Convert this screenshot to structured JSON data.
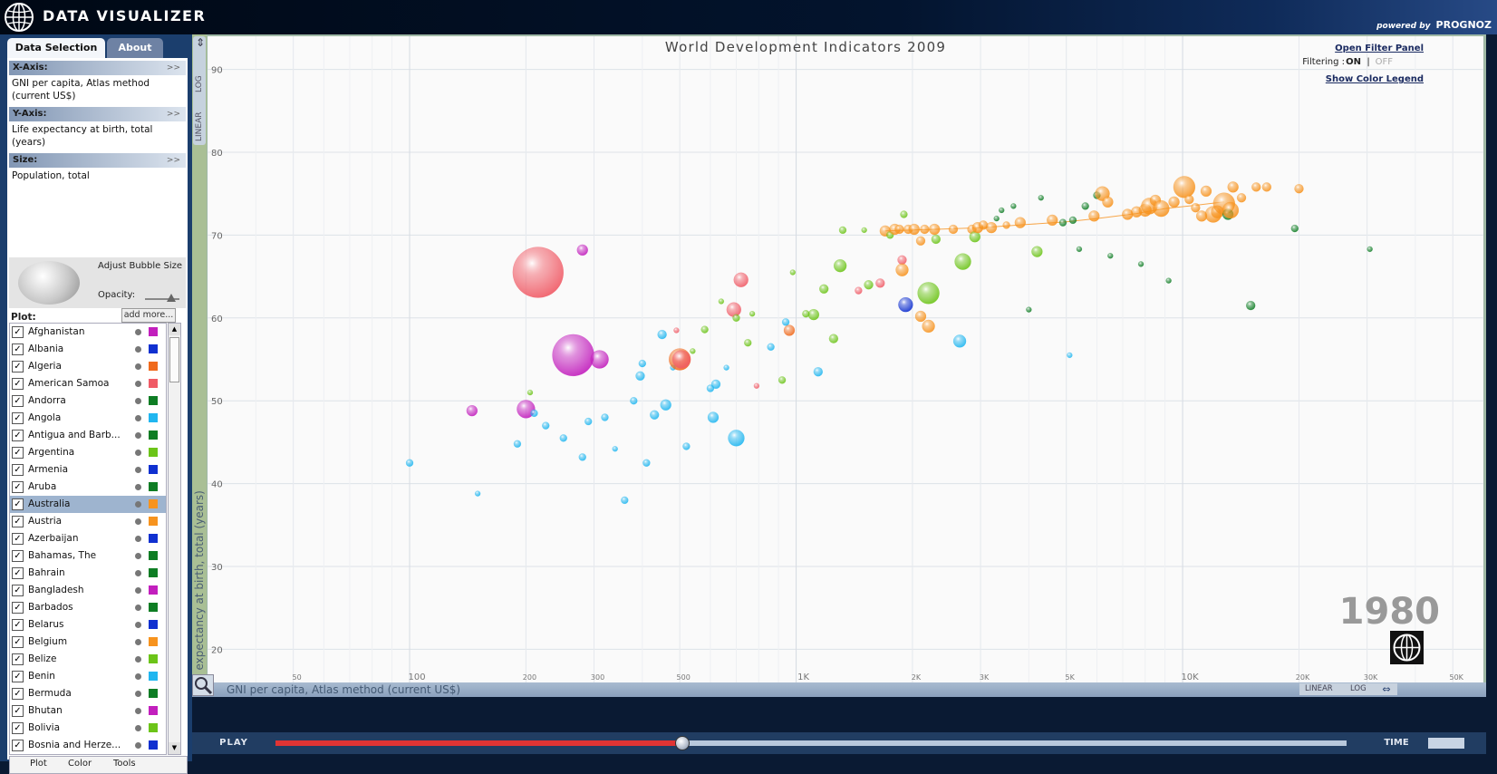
{
  "app": {
    "title": "DATA VISUALIZER",
    "powered_by": "powered by",
    "brand": "PROGNOZ"
  },
  "tabs": [
    "Data Selection",
    "About"
  ],
  "axes": {
    "x": {
      "label": "X-Axis:",
      "value": "GNI per capita, Atlas method (current US$)"
    },
    "y": {
      "label": "Y-Axis:",
      "value": "Life expectancy at birth, total (years)"
    },
    "size": {
      "label": "Size:",
      "value": "Population, total"
    },
    "expand": ">>"
  },
  "bubble_controls": {
    "adjust": "Adjust Bubble Size",
    "opacity": "Opacity:",
    "opacity_level": 0.7
  },
  "plot": {
    "label": "Plot:",
    "add_more": "add more..."
  },
  "countries": [
    {
      "name": "Afghanistan",
      "color": "#c21fbd",
      "selected": false
    },
    {
      "name": "Albania",
      "color": "#1030d0",
      "selected": false
    },
    {
      "name": "Algeria",
      "color": "#f06a1c",
      "selected": false
    },
    {
      "name": "American Samoa",
      "color": "#f05b66",
      "selected": false
    },
    {
      "name": "Andorra",
      "color": "#0e7d24",
      "selected": false
    },
    {
      "name": "Angola",
      "color": "#20b6f0",
      "selected": false
    },
    {
      "name": "Antigua and Barb...",
      "color": "#0e7d24",
      "selected": false
    },
    {
      "name": "Argentina",
      "color": "#6cc418",
      "selected": false
    },
    {
      "name": "Armenia",
      "color": "#1030d0",
      "selected": false
    },
    {
      "name": "Aruba",
      "color": "#0e7d24",
      "selected": false
    },
    {
      "name": "Australia",
      "color": "#f7931e",
      "selected": true
    },
    {
      "name": "Austria",
      "color": "#f7931e",
      "selected": false
    },
    {
      "name": "Azerbaijan",
      "color": "#1030d0",
      "selected": false
    },
    {
      "name": "Bahamas, The",
      "color": "#0e7d24",
      "selected": false
    },
    {
      "name": "Bahrain",
      "color": "#0e7d24",
      "selected": false
    },
    {
      "name": "Bangladesh",
      "color": "#c21fbd",
      "selected": false
    },
    {
      "name": "Barbados",
      "color": "#0e7d24",
      "selected": false
    },
    {
      "name": "Belarus",
      "color": "#1030d0",
      "selected": false
    },
    {
      "name": "Belgium",
      "color": "#f7931e",
      "selected": false
    },
    {
      "name": "Belize",
      "color": "#6cc418",
      "selected": false
    },
    {
      "name": "Benin",
      "color": "#20b6f0",
      "selected": false
    },
    {
      "name": "Bermuda",
      "color": "#0e7d24",
      "selected": false
    },
    {
      "name": "Bhutan",
      "color": "#c21fbd",
      "selected": false
    },
    {
      "name": "Bolivia",
      "color": "#6cc418",
      "selected": false
    },
    {
      "name": "Bosnia and Herze...",
      "color": "#1030d0",
      "selected": false
    }
  ],
  "bottom_tabs": [
    "Plot",
    "Color",
    "Tools"
  ],
  "scale_toggle": {
    "log": "LOG",
    "linear": "LINEAR"
  },
  "filter": {
    "open": "Open Filter Panel",
    "label": "Filtering :",
    "on": "ON",
    "sep": "|",
    "off": "OFF",
    "legend": "Show Color Legend"
  },
  "year": "1980",
  "playbar": {
    "play": "PLAY",
    "time": "TIME",
    "progress": 0.38
  },
  "chart_data": {
    "type": "scatter",
    "title": "World Development Indicators 2009",
    "xlabel": "GNI per capita, Atlas method (current US$)",
    "ylabel": "Life expectancy at birth, total (years)",
    "x_scale": "log",
    "xlim": [
      30,
      60000
    ],
    "ylim": [
      16,
      94
    ],
    "x_ticks": [
      {
        "v": 50,
        "label": "50"
      },
      {
        "v": 100,
        "label": "100",
        "major": true
      },
      {
        "v": 200,
        "label": "200"
      },
      {
        "v": 300,
        "label": "300"
      },
      {
        "v": 500,
        "label": "500"
      },
      {
        "v": 1000,
        "label": "1K",
        "major": true
      },
      {
        "v": 2000,
        "label": "2K"
      },
      {
        "v": 3000,
        "label": "3K"
      },
      {
        "v": 5000,
        "label": "5K"
      },
      {
        "v": 10000,
        "label": "10K",
        "major": true
      },
      {
        "v": 20000,
        "label": "20K"
      },
      {
        "v": 30000,
        "label": "30K"
      },
      {
        "v": 50000,
        "label": "50K"
      }
    ],
    "y_ticks": [
      20,
      30,
      40,
      50,
      60,
      70,
      80,
      90
    ],
    "grid": true,
    "points": [
      {
        "x": 215,
        "y": 65.5,
        "r": 28,
        "c": "#f05b66"
      },
      {
        "x": 265,
        "y": 55.5,
        "r": 23,
        "c": "#c21fbd"
      },
      {
        "x": 280,
        "y": 68.2,
        "r": 6,
        "c": "#c21fbd"
      },
      {
        "x": 310,
        "y": 55,
        "r": 10,
        "c": "#c21fbd"
      },
      {
        "x": 200,
        "y": 49,
        "r": 10,
        "c": "#c21fbd"
      },
      {
        "x": 145,
        "y": 48.8,
        "r": 6,
        "c": "#c21fbd"
      },
      {
        "x": 100,
        "y": 42.5,
        "r": 4,
        "c": "#20b6f0"
      },
      {
        "x": 150,
        "y": 38.8,
        "r": 3,
        "c": "#20b6f0"
      },
      {
        "x": 190,
        "y": 44.8,
        "r": 4,
        "c": "#20b6f0"
      },
      {
        "x": 205,
        "y": 51,
        "r": 3,
        "c": "#6cc418"
      },
      {
        "x": 210,
        "y": 48.5,
        "r": 4,
        "c": "#20b6f0"
      },
      {
        "x": 225,
        "y": 47,
        "r": 4,
        "c": "#20b6f0"
      },
      {
        "x": 250,
        "y": 45.5,
        "r": 4,
        "c": "#20b6f0"
      },
      {
        "x": 280,
        "y": 43.2,
        "r": 4,
        "c": "#20b6f0"
      },
      {
        "x": 290,
        "y": 47.5,
        "r": 4,
        "c": "#20b6f0"
      },
      {
        "x": 320,
        "y": 48,
        "r": 4,
        "c": "#20b6f0"
      },
      {
        "x": 340,
        "y": 44.2,
        "r": 3,
        "c": "#20b6f0"
      },
      {
        "x": 360,
        "y": 38,
        "r": 4,
        "c": "#20b6f0"
      },
      {
        "x": 380,
        "y": 50,
        "r": 4,
        "c": "#20b6f0"
      },
      {
        "x": 395,
        "y": 53,
        "r": 5,
        "c": "#20b6f0"
      },
      {
        "x": 400,
        "y": 54.5,
        "r": 4,
        "c": "#20b6f0"
      },
      {
        "x": 410,
        "y": 42.5,
        "r": 4,
        "c": "#20b6f0"
      },
      {
        "x": 430,
        "y": 48.3,
        "r": 5,
        "c": "#20b6f0"
      },
      {
        "x": 450,
        "y": 58,
        "r": 5,
        "c": "#20b6f0"
      },
      {
        "x": 460,
        "y": 49.5,
        "r": 6,
        "c": "#20b6f0"
      },
      {
        "x": 480,
        "y": 54,
        "r": 3,
        "c": "#20b6f0"
      },
      {
        "x": 490,
        "y": 58.5,
        "r": 3,
        "c": "#f05b66"
      },
      {
        "x": 500,
        "y": 55,
        "r": 12,
        "c": "#f06a1c"
      },
      {
        "x": 505,
        "y": 55,
        "r": 10,
        "c": "#f05b66"
      },
      {
        "x": 520,
        "y": 44.5,
        "r": 4,
        "c": "#20b6f0"
      },
      {
        "x": 540,
        "y": 56,
        "r": 3,
        "c": "#6cc418"
      },
      {
        "x": 580,
        "y": 58.6,
        "r": 4,
        "c": "#6cc418"
      },
      {
        "x": 600,
        "y": 51.5,
        "r": 4,
        "c": "#20b6f0"
      },
      {
        "x": 610,
        "y": 48,
        "r": 6,
        "c": "#20b6f0"
      },
      {
        "x": 620,
        "y": 52,
        "r": 5,
        "c": "#20b6f0"
      },
      {
        "x": 640,
        "y": 62,
        "r": 3,
        "c": "#6cc418"
      },
      {
        "x": 660,
        "y": 54,
        "r": 3,
        "c": "#20b6f0"
      },
      {
        "x": 700,
        "y": 45.5,
        "r": 9,
        "c": "#20b6f0"
      },
      {
        "x": 690,
        "y": 61,
        "r": 8,
        "c": "#f05b66"
      },
      {
        "x": 700,
        "y": 60,
        "r": 4,
        "c": "#6cc418"
      },
      {
        "x": 720,
        "y": 64.6,
        "r": 8,
        "c": "#f05b66"
      },
      {
        "x": 750,
        "y": 57,
        "r": 4,
        "c": "#6cc418"
      },
      {
        "x": 770,
        "y": 60.5,
        "r": 3,
        "c": "#6cc418"
      },
      {
        "x": 790,
        "y": 51.8,
        "r": 3,
        "c": "#f05b66"
      },
      {
        "x": 860,
        "y": 56.5,
        "r": 4,
        "c": "#20b6f0"
      },
      {
        "x": 920,
        "y": 52.5,
        "r": 4,
        "c": "#6cc418"
      },
      {
        "x": 940,
        "y": 59.5,
        "r": 4,
        "c": "#20b6f0"
      },
      {
        "x": 960,
        "y": 58.5,
        "r": 6,
        "c": "#f06a1c"
      },
      {
        "x": 980,
        "y": 65.5,
        "r": 3,
        "c": "#6cc418"
      },
      {
        "x": 1060,
        "y": 60.5,
        "r": 4,
        "c": "#6cc418"
      },
      {
        "x": 1110,
        "y": 60.4,
        "r": 6,
        "c": "#6cc418"
      },
      {
        "x": 1140,
        "y": 53.5,
        "r": 5,
        "c": "#20b6f0"
      },
      {
        "x": 1180,
        "y": 63.5,
        "r": 5,
        "c": "#6cc418"
      },
      {
        "x": 1250,
        "y": 57.5,
        "r": 5,
        "c": "#6cc418"
      },
      {
        "x": 1300,
        "y": 66.3,
        "r": 7,
        "c": "#6cc418"
      },
      {
        "x": 1320,
        "y": 70.6,
        "r": 4,
        "c": "#6cc418"
      },
      {
        "x": 1450,
        "y": 63.3,
        "r": 4,
        "c": "#f05b66"
      },
      {
        "x": 1500,
        "y": 70.6,
        "r": 3,
        "c": "#6cc418"
      },
      {
        "x": 1540,
        "y": 64,
        "r": 5,
        "c": "#6cc418"
      },
      {
        "x": 1650,
        "y": 64.2,
        "r": 5,
        "c": "#f05b66"
      },
      {
        "x": 1700,
        "y": 70.5,
        "r": 6,
        "c": "#f7931e"
      },
      {
        "x": 1750,
        "y": 70,
        "r": 4,
        "c": "#6cc418"
      },
      {
        "x": 1800,
        "y": 70.7,
        "r": 6,
        "c": "#f7931e"
      },
      {
        "x": 1850,
        "y": 70.7,
        "r": 5,
        "c": "#f7931e"
      },
      {
        "x": 1880,
        "y": 67,
        "r": 5,
        "c": "#f05b66"
      },
      {
        "x": 1880,
        "y": 65.8,
        "r": 7,
        "c": "#f7931e"
      },
      {
        "x": 1900,
        "y": 72.5,
        "r": 4,
        "c": "#6cc418"
      },
      {
        "x": 1920,
        "y": 61.6,
        "r": 8,
        "c": "#1030d0"
      },
      {
        "x": 1950,
        "y": 70.7,
        "r": 5,
        "c": "#f7931e"
      },
      {
        "x": 2020,
        "y": 70.7,
        "r": 6,
        "c": "#f7931e"
      },
      {
        "x": 2100,
        "y": 60.2,
        "r": 6,
        "c": "#f7931e"
      },
      {
        "x": 2100,
        "y": 69.3,
        "r": 5,
        "c": "#f7931e"
      },
      {
        "x": 2150,
        "y": 70.7,
        "r": 5,
        "c": "#f7931e"
      },
      {
        "x": 2200,
        "y": 63,
        "r": 12,
        "c": "#6cc418"
      },
      {
        "x": 2200,
        "y": 59,
        "r": 7,
        "c": "#f7931e"
      },
      {
        "x": 2280,
        "y": 70.7,
        "r": 6,
        "c": "#f7931e"
      },
      {
        "x": 2300,
        "y": 69.5,
        "r": 5,
        "c": "#6cc418"
      },
      {
        "x": 2550,
        "y": 70.7,
        "r": 5,
        "c": "#f7931e"
      },
      {
        "x": 2650,
        "y": 57.2,
        "r": 7,
        "c": "#20b6f0"
      },
      {
        "x": 2700,
        "y": 66.8,
        "r": 9,
        "c": "#6cc418"
      },
      {
        "x": 2850,
        "y": 70.7,
        "r": 5,
        "c": "#f7931e"
      },
      {
        "x": 2900,
        "y": 69.8,
        "r": 6,
        "c": "#6cc418"
      },
      {
        "x": 2950,
        "y": 70.9,
        "r": 6,
        "c": "#f7931e"
      },
      {
        "x": 3050,
        "y": 71.2,
        "r": 5,
        "c": "#f7931e"
      },
      {
        "x": 3200,
        "y": 70.9,
        "r": 6,
        "c": "#f7931e"
      },
      {
        "x": 3300,
        "y": 72,
        "r": 3,
        "c": "#0e7d24"
      },
      {
        "x": 3400,
        "y": 73,
        "r": 3,
        "c": "#0e7d24"
      },
      {
        "x": 3500,
        "y": 71.2,
        "r": 4,
        "c": "#f7931e"
      },
      {
        "x": 3650,
        "y": 73.5,
        "r": 3,
        "c": "#0e7d24"
      },
      {
        "x": 3800,
        "y": 71.5,
        "r": 6,
        "c": "#f7931e"
      },
      {
        "x": 4000,
        "y": 61,
        "r": 3,
        "c": "#0e7d24"
      },
      {
        "x": 4200,
        "y": 68,
        "r": 6,
        "c": "#6cc418"
      },
      {
        "x": 4300,
        "y": 74.5,
        "r": 3,
        "c": "#0e7d24"
      },
      {
        "x": 4600,
        "y": 71.8,
        "r": 6,
        "c": "#f7931e"
      },
      {
        "x": 4900,
        "y": 71.5,
        "r": 4,
        "c": "#0e7d24"
      },
      {
        "x": 5100,
        "y": 55.5,
        "r": 3,
        "c": "#20b6f0"
      },
      {
        "x": 5200,
        "y": 71.8,
        "r": 4,
        "c": "#0e7d24"
      },
      {
        "x": 5400,
        "y": 68.3,
        "r": 3,
        "c": "#0e7d24"
      },
      {
        "x": 5600,
        "y": 73.5,
        "r": 4,
        "c": "#0e7d24"
      },
      {
        "x": 5900,
        "y": 72.3,
        "r": 6,
        "c": "#f7931e"
      },
      {
        "x": 6000,
        "y": 74.8,
        "r": 4,
        "c": "#0e7d24"
      },
      {
        "x": 6200,
        "y": 75,
        "r": 8,
        "c": "#f7931e"
      },
      {
        "x": 6400,
        "y": 74,
        "r": 6,
        "c": "#f7931e"
      },
      {
        "x": 6500,
        "y": 67.5,
        "r": 3,
        "c": "#0e7d24"
      },
      {
        "x": 7200,
        "y": 72.5,
        "r": 6,
        "c": "#f7931e"
      },
      {
        "x": 7600,
        "y": 72.8,
        "r": 6,
        "c": "#f7931e"
      },
      {
        "x": 7800,
        "y": 66.5,
        "r": 3,
        "c": "#0e7d24"
      },
      {
        "x": 8000,
        "y": 73,
        "r": 7,
        "c": "#f7931e"
      },
      {
        "x": 8200,
        "y": 73.5,
        "r": 9,
        "c": "#f7931e"
      },
      {
        "x": 8500,
        "y": 74.2,
        "r": 6,
        "c": "#f7931e"
      },
      {
        "x": 8800,
        "y": 73.2,
        "r": 9,
        "c": "#f7931e"
      },
      {
        "x": 9200,
        "y": 64.5,
        "r": 3,
        "c": "#0e7d24"
      },
      {
        "x": 9500,
        "y": 74,
        "r": 6,
        "c": "#f7931e"
      },
      {
        "x": 10100,
        "y": 75.8,
        "r": 12,
        "c": "#f7931e"
      },
      {
        "x": 10400,
        "y": 74.3,
        "r": 5,
        "c": "#f7931e"
      },
      {
        "x": 10800,
        "y": 73.3,
        "r": 5,
        "c": "#f7931e"
      },
      {
        "x": 11200,
        "y": 72.3,
        "r": 6,
        "c": "#f7931e"
      },
      {
        "x": 11500,
        "y": 75.3,
        "r": 6,
        "c": "#f7931e"
      },
      {
        "x": 12000,
        "y": 72.5,
        "r": 9,
        "c": "#f7931e"
      },
      {
        "x": 12300,
        "y": 72.8,
        "r": 7,
        "c": "#f7931e"
      },
      {
        "x": 12800,
        "y": 73.8,
        "r": 12,
        "c": "#f7931e"
      },
      {
        "x": 13100,
        "y": 72.5,
        "r": 6,
        "c": "#0e7d24"
      },
      {
        "x": 13300,
        "y": 73,
        "r": 9,
        "c": "#f7931e"
      },
      {
        "x": 13500,
        "y": 75.8,
        "r": 6,
        "c": "#f7931e"
      },
      {
        "x": 14200,
        "y": 74.5,
        "r": 5,
        "c": "#f7931e"
      },
      {
        "x": 15000,
        "y": 61.5,
        "r": 5,
        "c": "#0e7d24"
      },
      {
        "x": 15500,
        "y": 75.8,
        "r": 5,
        "c": "#f7931e"
      },
      {
        "x": 16500,
        "y": 75.8,
        "r": 5,
        "c": "#f7931e"
      },
      {
        "x": 19500,
        "y": 70.8,
        "r": 4,
        "c": "#0e7d24"
      },
      {
        "x": 20000,
        "y": 75.6,
        "r": 5,
        "c": "#f7931e"
      },
      {
        "x": 30500,
        "y": 68.3,
        "r": 3,
        "c": "#0e7d24"
      }
    ],
    "trail": [
      [
        1700,
        70.5
      ],
      [
        2300,
        70.7
      ],
      [
        3000,
        70.9
      ],
      [
        4000,
        71.3
      ],
      [
        5000,
        71.6
      ],
      [
        6000,
        72
      ],
      [
        7600,
        72.6
      ],
      [
        9000,
        73.2
      ],
      [
        10800,
        73.6
      ],
      [
        12800,
        74
      ]
    ]
  }
}
